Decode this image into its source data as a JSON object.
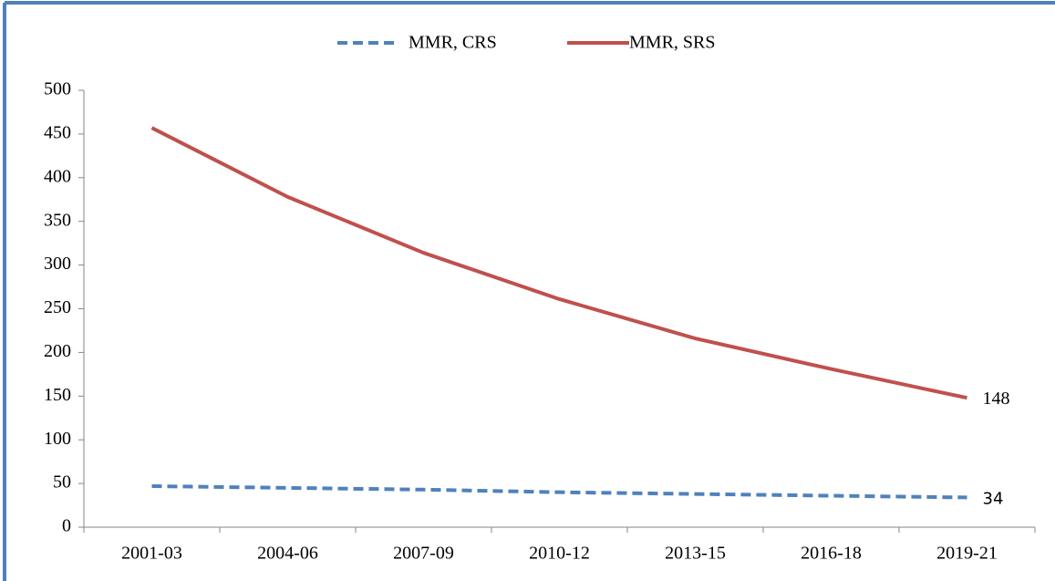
{
  "chart_data": {
    "type": "line",
    "categories": [
      "2001-03",
      "2004-06",
      "2007-09",
      "2010-12",
      "2013-15",
      "2016-18",
      "2019-21"
    ],
    "series": [
      {
        "name": "MMR, CRS",
        "color": "#4f81bd",
        "dashed": true,
        "values": [
          47,
          45,
          43,
          40,
          38,
          36,
          34
        ]
      },
      {
        "name": "MMR, SRS",
        "color": "#c0504d",
        "dashed": false,
        "values": [
          457,
          378,
          314,
          261,
          216,
          181,
          148
        ]
      }
    ],
    "ylim": [
      0,
      500
    ],
    "yticks": [
      0,
      50,
      100,
      150,
      200,
      250,
      300,
      350,
      400,
      450,
      500
    ],
    "grid": false,
    "legend": "top",
    "label_last": true
  }
}
